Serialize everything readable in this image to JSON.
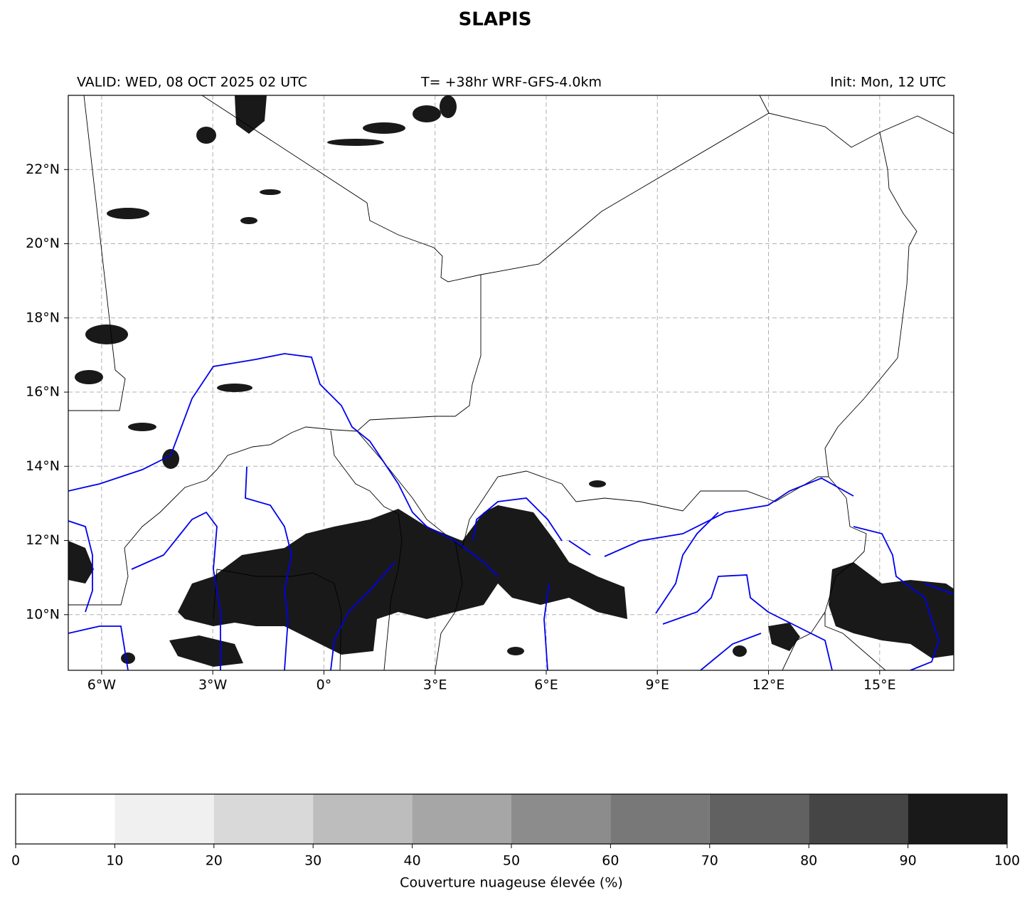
{
  "title": "SLAPIS",
  "valid": "VALID: WED, 08 OCT 2025 02 UTC",
  "run": "T= +38hr WRF-GFS-4.0km",
  "init": "Init: Mon, 12 UTC",
  "map": {
    "xlim": [
      -6.9,
      17
    ],
    "ylim": [
      8.5,
      24
    ],
    "xticks": [
      {
        "value": -6,
        "label": "6°W"
      },
      {
        "value": -3,
        "label": "3°W"
      },
      {
        "value": 0,
        "label": "0°"
      },
      {
        "value": 3,
        "label": "3°E"
      },
      {
        "value": 6,
        "label": "6°E"
      },
      {
        "value": 9,
        "label": "9°E"
      },
      {
        "value": 12,
        "label": "12°E"
      },
      {
        "value": 15,
        "label": "15°E"
      }
    ],
    "yticks": [
      {
        "value": 10,
        "label": "10°N"
      },
      {
        "value": 12,
        "label": "12°N"
      },
      {
        "value": 14,
        "label": "14°N"
      },
      {
        "value": 16,
        "label": "16°N"
      },
      {
        "value": 18,
        "label": "18°N"
      },
      {
        "value": 20,
        "label": "20°N"
      },
      {
        "value": 22,
        "label": "22°N"
      }
    ],
    "grid": true
  },
  "colorbar": {
    "label": "Couverture nuageuse élevée (%)",
    "ticks": [
      0,
      10,
      20,
      30,
      40,
      50,
      60,
      70,
      80,
      90,
      100
    ],
    "colors": [
      "#ffffff",
      "#f0f0f0",
      "#d9d9d9",
      "#bdbdbd",
      "#a6a6a6",
      "#8c8c8c",
      "#787878",
      "#616161",
      "#454545",
      "#191919"
    ]
  }
}
